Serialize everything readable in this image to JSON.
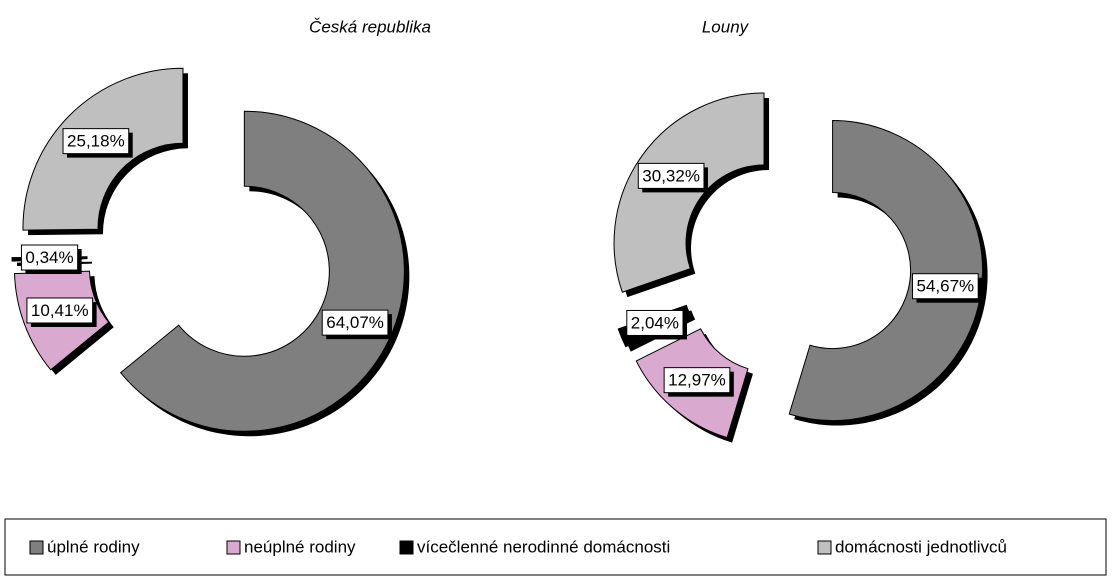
{
  "chart_data": [
    {
      "type": "doughnut",
      "title": "Česká republika",
      "values": [
        64.07,
        10.41,
        0.34,
        25.18
      ],
      "value_labels": [
        "64,07%",
        "10,41%",
        "0,34%",
        "25,18%"
      ]
    },
    {
      "type": "doughnut",
      "title": "Louny",
      "values": [
        54.67,
        12.97,
        2.04,
        30.32
      ],
      "value_labels": [
        "54,67%",
        "12,97%",
        "2,04%",
        "30,32%"
      ]
    }
  ],
  "legend": {
    "labels": [
      "úplné rodiny",
      "neúplné rodiny",
      "vícečlenné nerodinné domácnosti",
      "domácnosti jednotlivců"
    ],
    "colors": [
      "#7f7f7f",
      "#d9a9d0",
      "#000000",
      "#bfbfbf"
    ]
  }
}
